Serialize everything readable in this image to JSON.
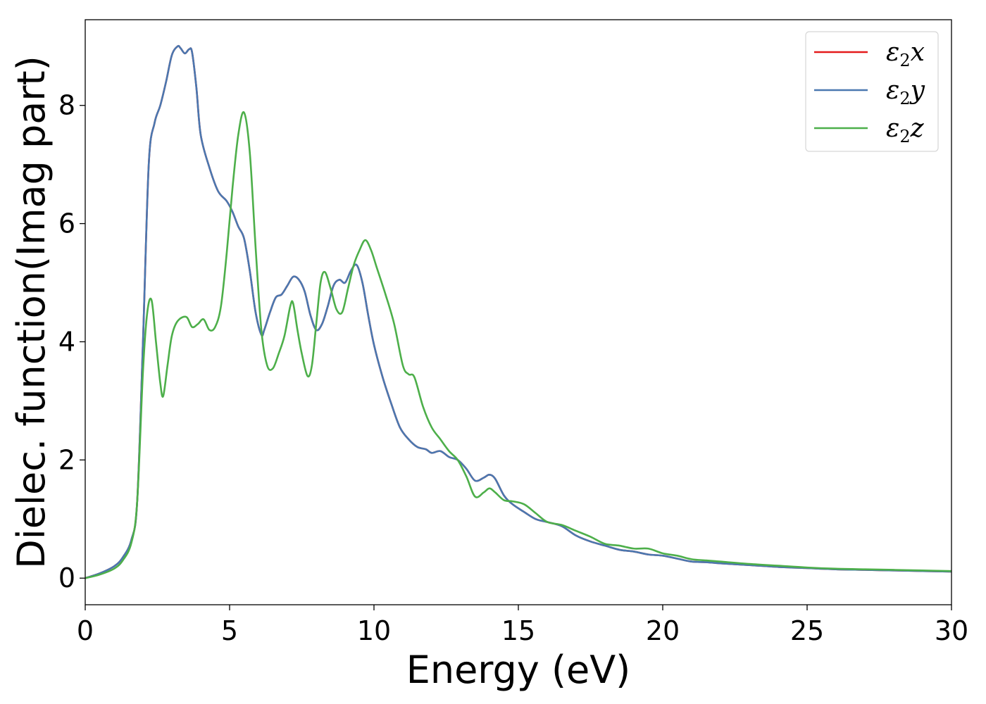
{
  "chart_data": {
    "type": "line",
    "xlabel": "Energy (eV)",
    "ylabel": "Dielec. function(Imag part)",
    "xlim": [
      0,
      30
    ],
    "ylim": [
      -0.45,
      9.45
    ],
    "xticks": [
      0,
      5,
      10,
      15,
      20,
      25,
      30
    ],
    "yticks": [
      0,
      2,
      4,
      6,
      8
    ],
    "grid": false,
    "legend_position": "top-right",
    "series": [
      {
        "name": "ε₂x",
        "legend_base": "ε",
        "legend_sub": "2",
        "legend_var": "x",
        "color": "#e41a1c",
        "x": [
          0,
          0.5,
          1.0,
          1.3,
          1.6,
          1.8,
          2.0,
          2.2,
          2.4,
          2.6,
          2.8,
          3.0,
          3.2,
          3.3,
          3.45,
          3.6,
          3.7,
          3.85,
          4.0,
          4.3,
          4.6,
          4.9,
          5.1,
          5.3,
          5.5,
          5.7,
          5.9,
          6.1,
          6.2,
          6.4,
          6.6,
          6.8,
          7.0,
          7.2,
          7.4,
          7.6,
          7.8,
          8.0,
          8.2,
          8.4,
          8.6,
          8.8,
          9.0,
          9.2,
          9.4,
          9.6,
          9.8,
          10.0,
          10.3,
          10.6,
          10.9,
          11.2,
          11.5,
          11.8,
          12.0,
          12.3,
          12.6,
          12.9,
          13.2,
          13.5,
          13.8,
          14.0,
          14.2,
          14.5,
          14.8,
          15.2,
          15.6,
          16.0,
          16.5,
          17.0,
          17.5,
          18.0,
          18.5,
          19.0,
          19.5,
          20.0,
          20.5,
          21.0,
          21.5,
          22.0,
          23.0,
          24.0,
          25.0,
          26.0,
          27.0,
          28.0,
          29.0,
          30.0
        ],
        "values": [
          0.0,
          0.08,
          0.2,
          0.35,
          0.65,
          1.3,
          4.0,
          7.0,
          7.7,
          8.0,
          8.4,
          8.85,
          9.0,
          8.97,
          8.88,
          8.95,
          8.9,
          8.3,
          7.5,
          6.95,
          6.55,
          6.38,
          6.2,
          5.95,
          5.75,
          5.2,
          4.5,
          4.12,
          4.2,
          4.5,
          4.75,
          4.8,
          4.95,
          5.1,
          5.05,
          4.85,
          4.45,
          4.2,
          4.3,
          4.6,
          4.95,
          5.05,
          5.0,
          5.2,
          5.3,
          5.0,
          4.45,
          3.95,
          3.4,
          2.95,
          2.55,
          2.35,
          2.22,
          2.18,
          2.12,
          2.15,
          2.05,
          2.0,
          1.85,
          1.65,
          1.7,
          1.75,
          1.68,
          1.4,
          1.25,
          1.12,
          1.0,
          0.95,
          0.88,
          0.72,
          0.62,
          0.55,
          0.48,
          0.45,
          0.4,
          0.38,
          0.33,
          0.28,
          0.27,
          0.25,
          0.22,
          0.19,
          0.17,
          0.15,
          0.14,
          0.13,
          0.12,
          0.11
        ]
      },
      {
        "name": "ε₂y",
        "legend_base": "ε",
        "legend_sub": "2",
        "legend_var": "y",
        "color": "#4a78b0",
        "x": [
          0,
          0.5,
          1.0,
          1.3,
          1.6,
          1.8,
          2.0,
          2.2,
          2.4,
          2.6,
          2.8,
          3.0,
          3.2,
          3.3,
          3.45,
          3.6,
          3.7,
          3.85,
          4.0,
          4.3,
          4.6,
          4.9,
          5.1,
          5.3,
          5.5,
          5.7,
          5.9,
          6.1,
          6.2,
          6.4,
          6.6,
          6.8,
          7.0,
          7.2,
          7.4,
          7.6,
          7.8,
          8.0,
          8.2,
          8.4,
          8.6,
          8.8,
          9.0,
          9.2,
          9.4,
          9.6,
          9.8,
          10.0,
          10.3,
          10.6,
          10.9,
          11.2,
          11.5,
          11.8,
          12.0,
          12.3,
          12.6,
          12.9,
          13.2,
          13.5,
          13.8,
          14.0,
          14.2,
          14.5,
          14.8,
          15.2,
          15.6,
          16.0,
          16.5,
          17.0,
          17.5,
          18.0,
          18.5,
          19.0,
          19.5,
          20.0,
          20.5,
          21.0,
          21.5,
          22.0,
          23.0,
          24.0,
          25.0,
          26.0,
          27.0,
          28.0,
          29.0,
          30.0
        ],
        "values": [
          0.0,
          0.08,
          0.2,
          0.35,
          0.65,
          1.3,
          4.0,
          7.0,
          7.7,
          8.0,
          8.4,
          8.85,
          9.0,
          8.97,
          8.88,
          8.95,
          8.9,
          8.3,
          7.5,
          6.95,
          6.55,
          6.38,
          6.2,
          5.95,
          5.75,
          5.2,
          4.5,
          4.12,
          4.2,
          4.5,
          4.75,
          4.8,
          4.95,
          5.1,
          5.05,
          4.85,
          4.45,
          4.2,
          4.3,
          4.6,
          4.95,
          5.05,
          5.0,
          5.2,
          5.3,
          5.0,
          4.45,
          3.95,
          3.4,
          2.95,
          2.55,
          2.35,
          2.22,
          2.18,
          2.12,
          2.15,
          2.05,
          2.0,
          1.85,
          1.65,
          1.7,
          1.75,
          1.68,
          1.4,
          1.25,
          1.12,
          1.0,
          0.95,
          0.88,
          0.72,
          0.62,
          0.55,
          0.48,
          0.45,
          0.4,
          0.38,
          0.33,
          0.28,
          0.27,
          0.25,
          0.22,
          0.19,
          0.17,
          0.15,
          0.14,
          0.13,
          0.12,
          0.11
        ]
      },
      {
        "name": "ε₂z",
        "legend_base": "ε",
        "legend_sub": "2",
        "legend_var": "z",
        "color": "#4daf4a",
        "x": [
          0,
          0.5,
          1.0,
          1.3,
          1.6,
          1.8,
          2.0,
          2.15,
          2.3,
          2.45,
          2.6,
          2.7,
          2.85,
          3.0,
          3.2,
          3.5,
          3.7,
          3.9,
          4.1,
          4.3,
          4.5,
          4.7,
          4.9,
          5.1,
          5.3,
          5.5,
          5.7,
          5.9,
          6.1,
          6.3,
          6.5,
          6.7,
          6.9,
          7.1,
          7.2,
          7.35,
          7.5,
          7.7,
          7.85,
          8.0,
          8.15,
          8.3,
          8.5,
          8.7,
          8.9,
          9.1,
          9.3,
          9.5,
          9.7,
          9.9,
          10.1,
          10.4,
          10.7,
          11.0,
          11.2,
          11.4,
          11.7,
          12.0,
          12.3,
          12.6,
          12.9,
          13.2,
          13.5,
          13.8,
          14.0,
          14.2,
          14.5,
          14.8,
          15.2,
          15.6,
          16.0,
          16.5,
          17.0,
          17.5,
          18.0,
          18.5,
          19.0,
          19.5,
          20.0,
          20.5,
          21.0,
          21.5,
          22.0,
          23.0,
          24.0,
          25.0,
          26.0,
          27.0,
          28.0,
          29.0,
          30.0
        ],
        "values": [
          0.0,
          0.06,
          0.16,
          0.3,
          0.6,
          1.3,
          3.5,
          4.5,
          4.7,
          4.0,
          3.3,
          3.08,
          3.6,
          4.1,
          4.35,
          4.42,
          4.25,
          4.3,
          4.38,
          4.2,
          4.25,
          4.6,
          5.5,
          6.6,
          7.5,
          7.88,
          7.2,
          5.6,
          4.2,
          3.6,
          3.55,
          3.8,
          4.1,
          4.6,
          4.65,
          4.2,
          3.8,
          3.42,
          3.6,
          4.3,
          5.0,
          5.18,
          4.9,
          4.55,
          4.5,
          4.9,
          5.3,
          5.55,
          5.72,
          5.55,
          5.25,
          4.8,
          4.3,
          3.6,
          3.45,
          3.4,
          2.9,
          2.55,
          2.35,
          2.15,
          2.0,
          1.72,
          1.38,
          1.45,
          1.52,
          1.45,
          1.32,
          1.3,
          1.25,
          1.1,
          0.95,
          0.9,
          0.8,
          0.7,
          0.58,
          0.55,
          0.5,
          0.5,
          0.42,
          0.38,
          0.32,
          0.3,
          0.28,
          0.24,
          0.21,
          0.18,
          0.16,
          0.15,
          0.14,
          0.13,
          0.12
        ]
      }
    ]
  }
}
